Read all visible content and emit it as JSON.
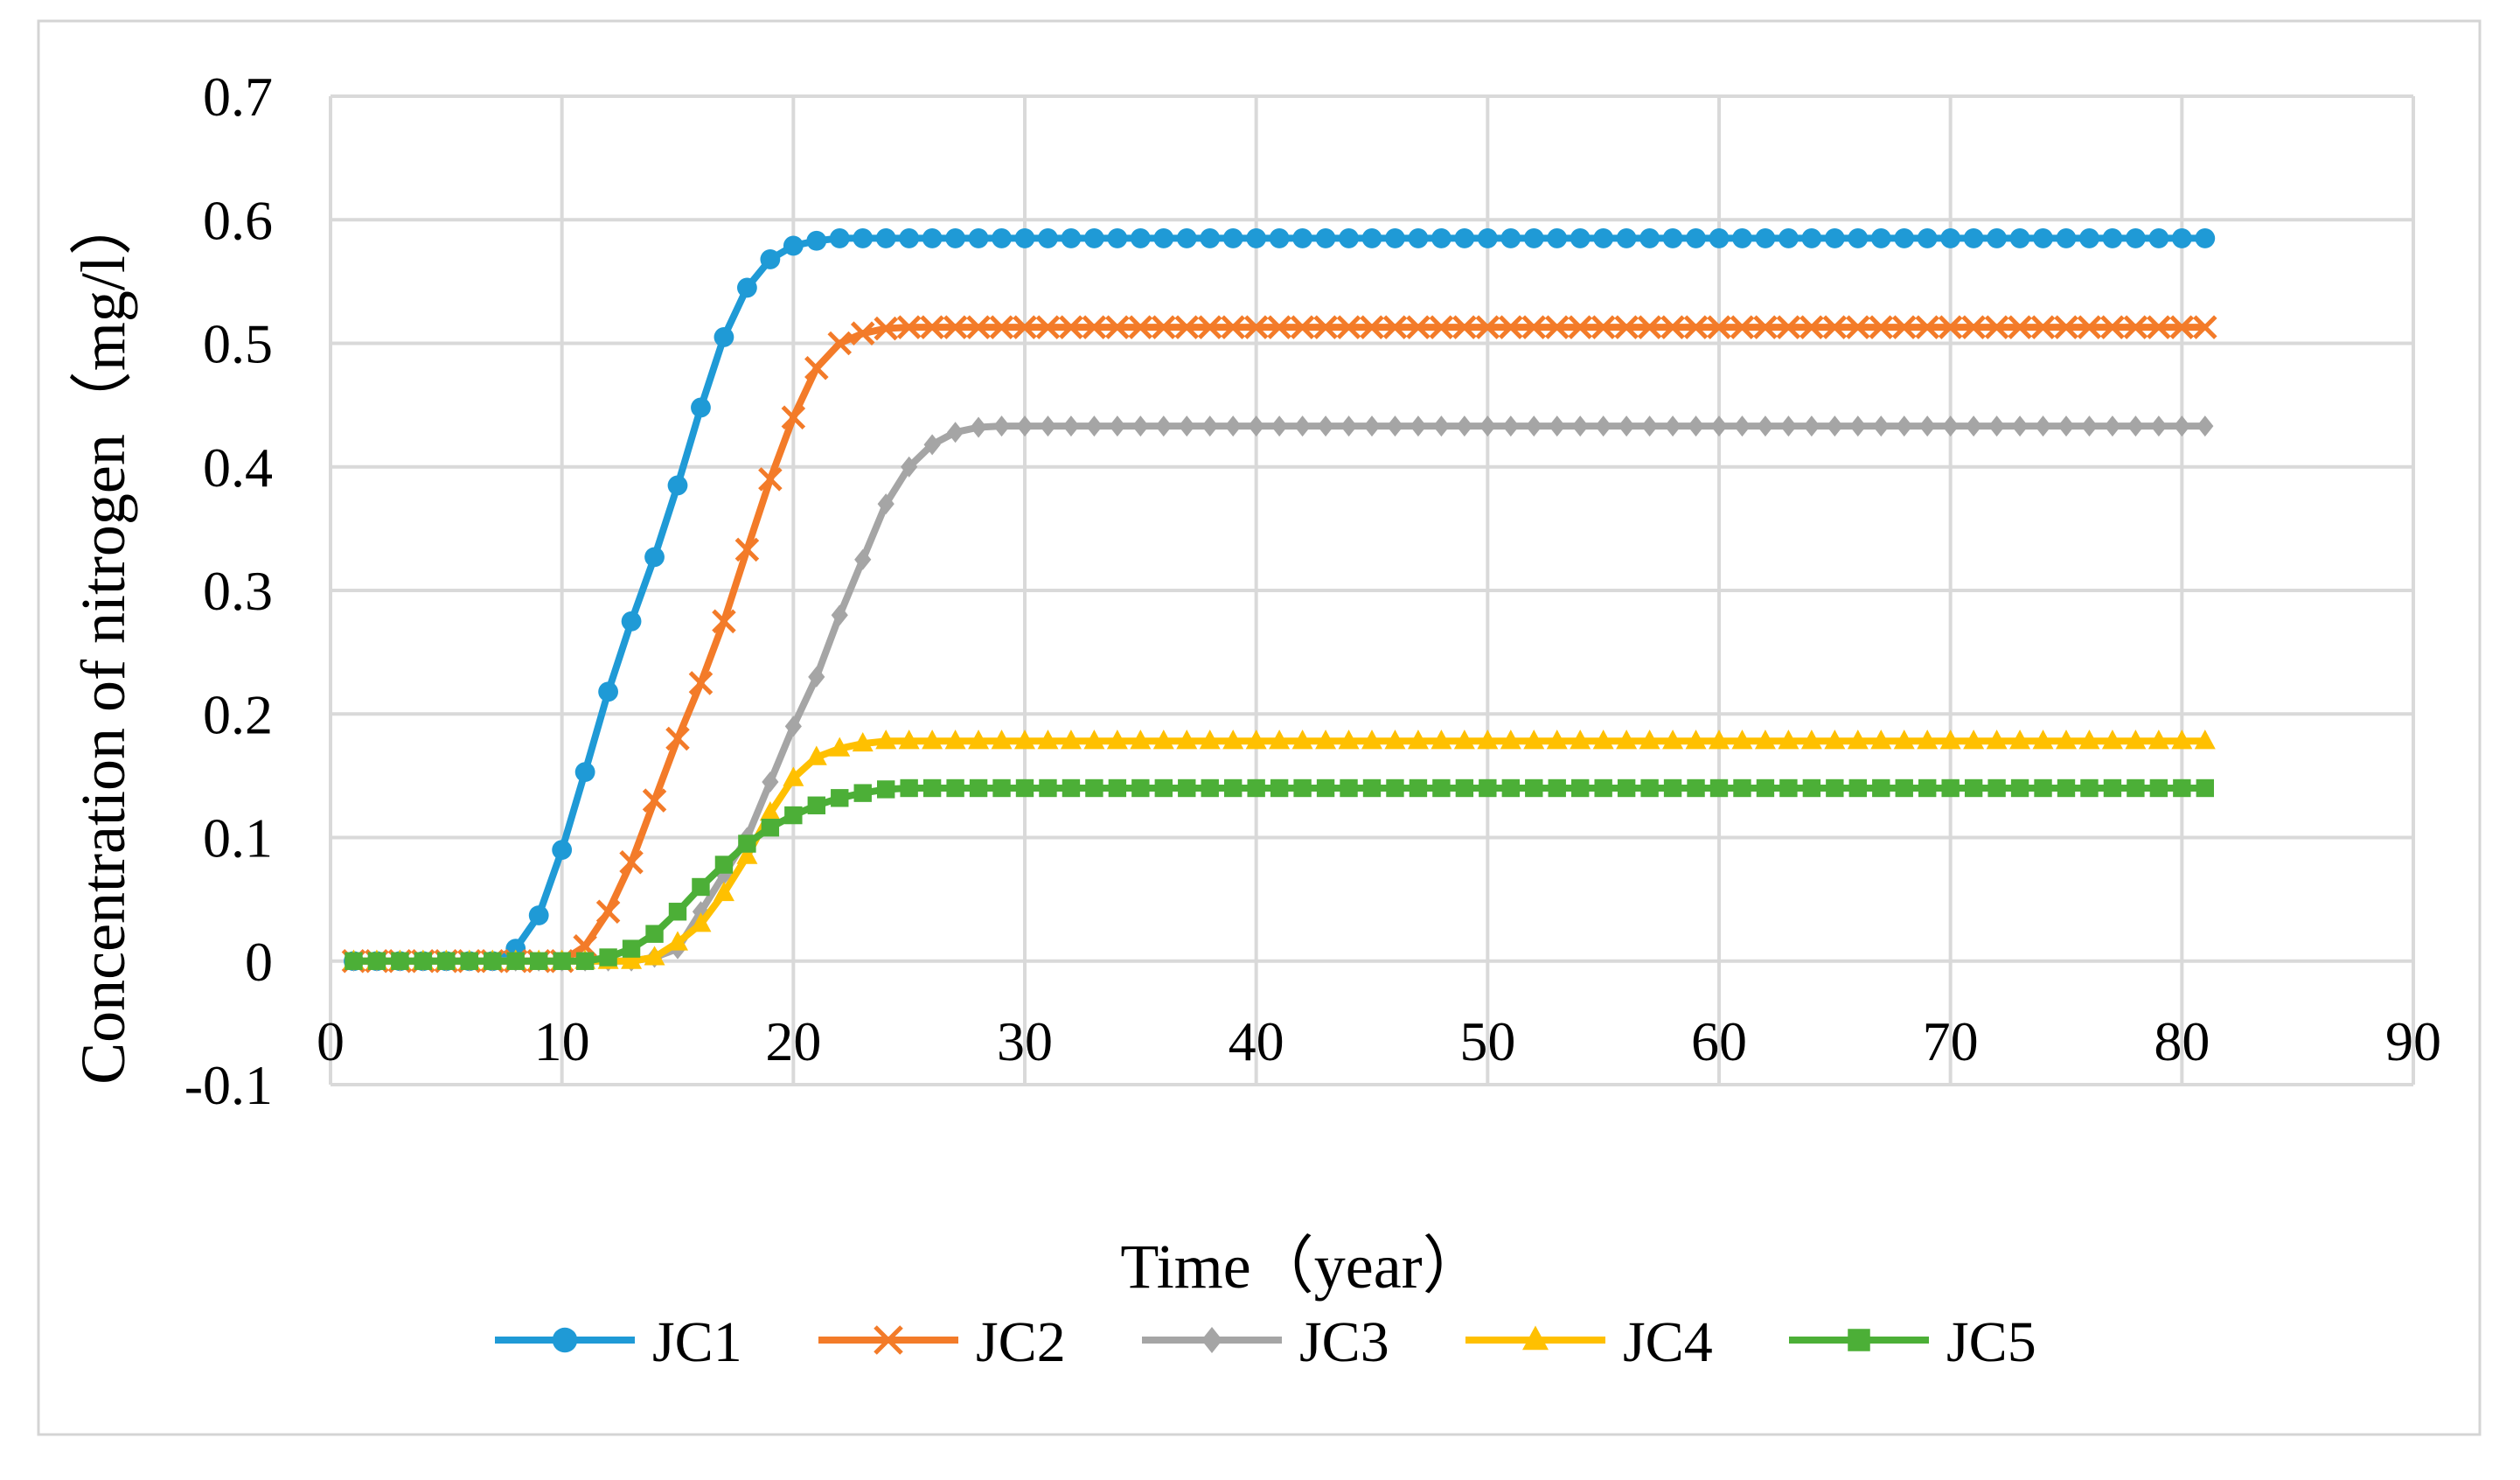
{
  "chart_data": {
    "type": "line",
    "title": "",
    "xlabel": "Time（year）",
    "ylabel": "Concentration of nitrogen（mg/l）",
    "xlim": [
      0,
      90
    ],
    "ylim": [
      -0.1,
      0.7
    ],
    "x_ticks": [
      0,
      10,
      20,
      30,
      40,
      50,
      60,
      70,
      80,
      90
    ],
    "y_ticks": [
      -0.1,
      0,
      0.1,
      0.2,
      0.3,
      0.4,
      0.5,
      0.6,
      0.7
    ],
    "x_tick_labels": [
      "0",
      "10",
      "20",
      "30",
      "40",
      "50",
      "60",
      "70",
      "80",
      "90"
    ],
    "y_tick_labels": [
      "-0.1",
      "0",
      "0.1",
      "0.2",
      "0.3",
      "0.4",
      "0.5",
      "0.6",
      "0.7"
    ],
    "grid": true,
    "legend_position": "bottom",
    "x_start": 1,
    "x_end": 81,
    "series": [
      {
        "name": "JC1",
        "color": "#1f9ad6",
        "marker": "circle",
        "values": [
          0,
          0,
          0,
          0,
          0,
          0,
          0,
          0.01,
          0.037,
          0.09,
          0.153,
          0.218,
          0.275,
          0.327,
          0.385,
          0.448,
          0.505,
          0.545,
          0.568,
          0.579,
          0.583,
          0.585,
          0.585
        ]
      },
      {
        "name": "JC2",
        "color": "#f37b29",
        "marker": "x",
        "values": [
          0,
          0,
          0,
          0,
          0,
          0,
          0,
          0,
          0,
          0,
          0.012,
          0.04,
          0.08,
          0.13,
          0.18,
          0.225,
          0.275,
          0.333,
          0.39,
          0.44,
          0.48,
          0.5,
          0.508,
          0.512,
          0.513
        ]
      },
      {
        "name": "JC3",
        "color": "#a5a5a5",
        "marker": "diamond",
        "values": [
          0,
          0,
          0,
          0,
          0,
          0,
          0,
          0,
          0,
          0,
          0,
          0,
          0,
          0.003,
          0.01,
          0.04,
          0.07,
          0.1,
          0.145,
          0.19,
          0.23,
          0.28,
          0.325,
          0.37,
          0.4,
          0.418,
          0.428,
          0.432,
          0.433
        ]
      },
      {
        "name": "JC4",
        "color": "#ffc000",
        "marker": "triangle",
        "values": [
          0,
          0,
          0,
          0,
          0,
          0,
          0,
          0,
          0,
          0,
          0,
          0,
          0,
          0.003,
          0.015,
          0.03,
          0.055,
          0.085,
          0.12,
          0.148,
          0.165,
          0.172,
          0.176,
          0.178,
          0.178
        ]
      },
      {
        "name": "JC5",
        "color": "#4caf37",
        "marker": "square",
        "values": [
          0,
          0,
          0,
          0,
          0,
          0,
          0,
          0,
          0,
          0,
          0,
          0.003,
          0.01,
          0.022,
          0.04,
          0.06,
          0.078,
          0.095,
          0.108,
          0.118,
          0.126,
          0.132,
          0.136,
          0.139,
          0.14
        ]
      }
    ]
  }
}
